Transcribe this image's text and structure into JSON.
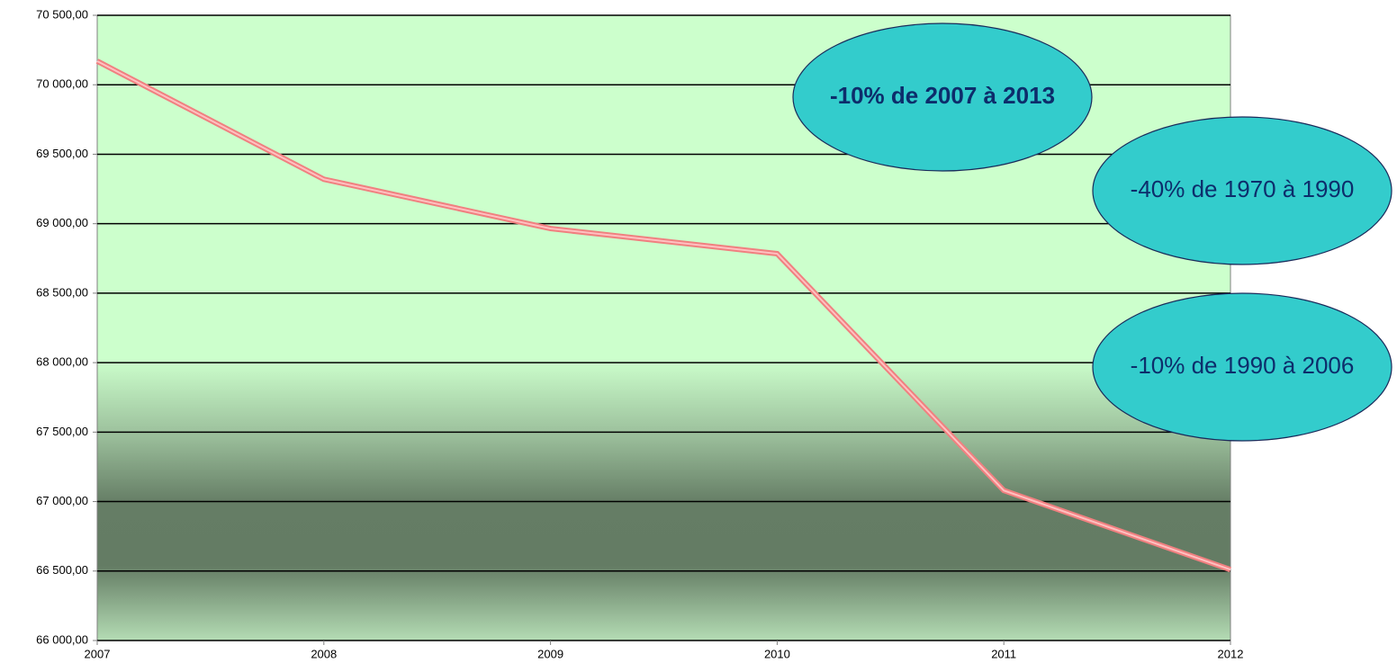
{
  "chart_data": {
    "type": "line",
    "x": [
      2007,
      2008,
      2009,
      2010,
      2011,
      2012
    ],
    "series": [
      {
        "color": "#f08080",
        "values": [
          70170,
          69320,
          68965,
          68784,
          67080,
          66510
        ]
      }
    ],
    "xlim": [
      2007,
      2012
    ],
    "xticks": [
      2007,
      2008,
      2009,
      2010,
      2011,
      2012
    ],
    "ylim": [
      66000,
      70500
    ],
    "yticks": [
      {
        "value": 66000,
        "label": "66 000,00"
      },
      {
        "value": 66500,
        "label": "66 500,00"
      },
      {
        "value": 67000,
        "label": "67 000,00"
      },
      {
        "value": 67500,
        "label": "67 500,00"
      },
      {
        "value": 68000,
        "label": "68 000,00"
      },
      {
        "value": 68500,
        "label": "68 500,00"
      },
      {
        "value": 69000,
        "label": "69 000,00"
      },
      {
        "value": 69500,
        "label": "69 500,00"
      },
      {
        "value": 70000,
        "label": "70 000,00"
      },
      {
        "value": 70500,
        "label": "70 500,00"
      }
    ],
    "grid": true,
    "annotations": [
      "-10% de 2007 à 2013",
      "-40% de 1970 à 1990",
      "-10% de 1990 à 2006"
    ]
  }
}
